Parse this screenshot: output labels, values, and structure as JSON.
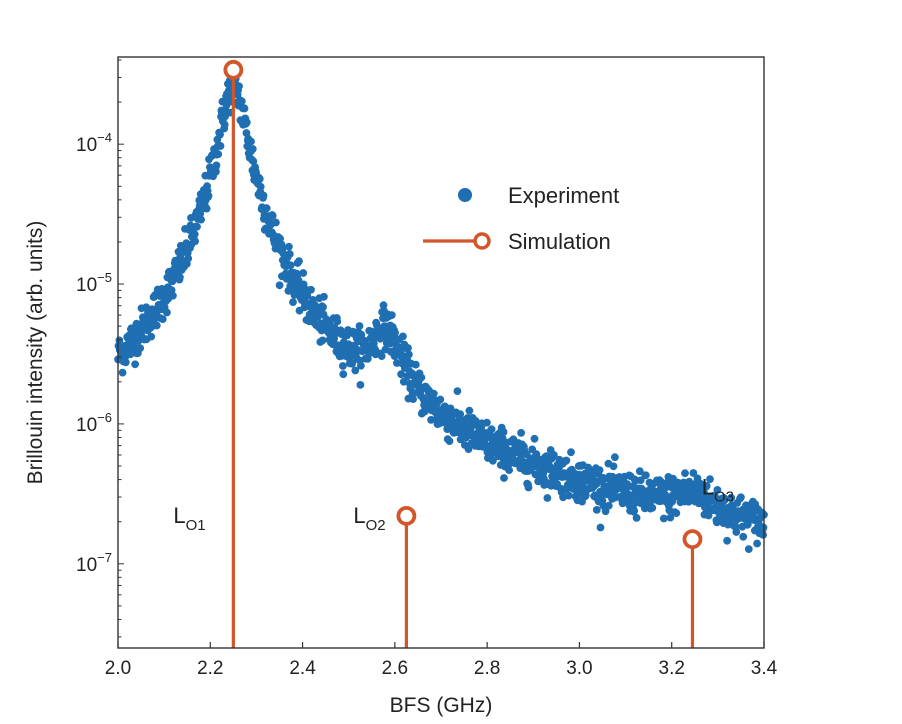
{
  "chart_data": {
    "type": "scatter",
    "title": "",
    "xlabel": "BFS (GHz)",
    "ylabel": "Brillouin intensity (arb. units)",
    "xlim": [
      2.0,
      3.4
    ],
    "ylim": [
      2.5e-08,
      0.00042
    ],
    "yscale": "log",
    "x_ticks": [
      2.0,
      2.2,
      2.4,
      2.6,
      2.8,
      3.0,
      3.2,
      3.4
    ],
    "x_tick_labels": [
      "2.0",
      "2.2",
      "2.4",
      "2.6",
      "2.8",
      "3.0",
      "3.2",
      "3.4"
    ],
    "y_ticks": [
      {
        "value": 0.0001,
        "base": "10",
        "exp": "−4"
      },
      {
        "value": 1e-05,
        "base": "10",
        "exp": "−5"
      },
      {
        "value": 1e-06,
        "base": "10",
        "exp": "−6"
      },
      {
        "value": 1e-07,
        "base": "10",
        "exp": "−7"
      }
    ],
    "legend": {
      "position": "upper-right",
      "entries": [
        {
          "label": "Experiment",
          "marker": "filled-circle",
          "color": "#1f6fb2"
        },
        {
          "label": "Simulation",
          "marker": "line-open-circle",
          "color": "#d2562a"
        }
      ]
    },
    "series": [
      {
        "name": "Experiment",
        "kind": "scatter",
        "color": "#1f6fb2",
        "x_start": 2.0,
        "x_end": 3.4,
        "point_count": 1400,
        "model": "background 4e-8 plus three Lorentzian peaks",
        "peaks": [
          {
            "center": 2.25,
            "amplitude": 0.00026,
            "half_width": 0.027
          },
          {
            "center": 2.58,
            "amplitude": 3.1e-06,
            "half_width": 0.034
          },
          {
            "center": 3.245,
            "amplitude": 9.5e-08,
            "half_width": 0.045
          }
        ],
        "background": 4e-08,
        "noise_fraction": 0.17
      },
      {
        "name": "Simulation",
        "kind": "stem",
        "color": "#d2562a",
        "points": [
          {
            "x": 2.25,
            "y": 0.00034
          },
          {
            "x": 2.625,
            "y": 2.2e-07
          },
          {
            "x": 3.245,
            "y": 1.5e-07
          }
        ]
      }
    ],
    "annotations": [
      {
        "id": "lo1",
        "base": "L",
        "sub": "O1",
        "x": 2.12,
        "y": 2.2e-07
      },
      {
        "id": "lo2",
        "base": "L",
        "sub": "O2",
        "x": 2.51,
        "y": 2.2e-07
      },
      {
        "id": "lo3",
        "base": "L",
        "sub": "O3",
        "x": 3.265,
        "y": 3.5e-07
      }
    ]
  }
}
